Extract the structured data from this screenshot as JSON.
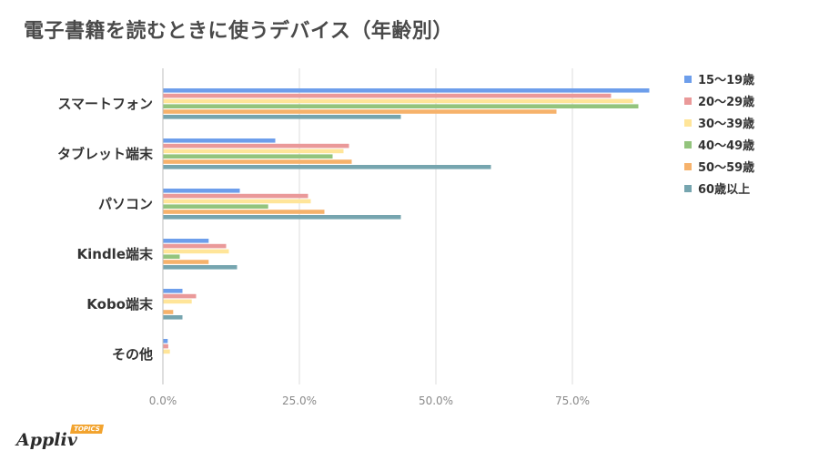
{
  "title": "電子書籍を読むときに使うデバイス（年齢別）",
  "logo": {
    "word": "Appliv",
    "tag": "TOPICS"
  },
  "chart_data": {
    "type": "bar",
    "orientation": "horizontal",
    "categories": [
      "スマートフォン",
      "タブレット端末",
      "パソコン",
      "Kindle端末",
      "Kobo端末",
      "その他"
    ],
    "series": [
      {
        "name": "15～19歳",
        "color": "#6d9eeb",
        "values": [
          89,
          20.5,
          14,
          8.3,
          3.5,
          0.8
        ]
      },
      {
        "name": "20～29歳",
        "color": "#ea9999",
        "values": [
          82,
          34,
          26.5,
          11.5,
          6,
          0.9
        ]
      },
      {
        "name": "30～39歳",
        "color": "#ffe599",
        "values": [
          86,
          33,
          27,
          12,
          5.2,
          1.2
        ]
      },
      {
        "name": "40～49歳",
        "color": "#93c47d",
        "values": [
          87,
          31,
          19.2,
          3,
          0,
          0
        ]
      },
      {
        "name": "50～59歳",
        "color": "#f6b26b",
        "values": [
          72,
          34.5,
          29.5,
          8.3,
          1.8,
          0
        ]
      },
      {
        "name": "60歳以上",
        "color": "#76a5af",
        "values": [
          43.5,
          60,
          43.5,
          13.5,
          3.5,
          0
        ]
      }
    ],
    "xlim": [
      0,
      90
    ],
    "xticks": [
      "0.0%",
      "25.0%",
      "50.0%",
      "75.0%"
    ],
    "xtick_values": [
      0,
      25,
      50,
      75
    ],
    "grid": true,
    "legend_position": "right"
  }
}
